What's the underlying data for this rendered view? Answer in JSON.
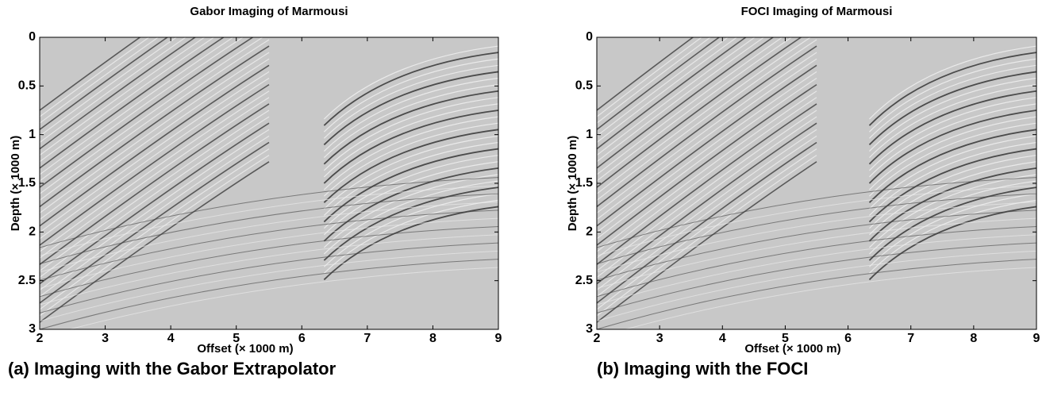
{
  "chart_data": [
    {
      "type": "image",
      "title": "Gabor Imaging of Marmousi",
      "x_label": "Offset (× 1000 m)",
      "y_label": "Depth (× 1000 m)",
      "caption": "(a) Imaging with the Gabor Extrapolator",
      "xlim": [
        2,
        9
      ],
      "ylim": [
        0,
        3
      ],
      "y_inverted": true,
      "xticks": [
        2,
        3,
        4,
        5,
        6,
        7,
        8,
        9
      ],
      "yticks": [
        0,
        0.5,
        1,
        1.5,
        2,
        2.5,
        3
      ],
      "colormap": "gray"
    },
    {
      "type": "image",
      "title": "FOCI Imaging of Marmousi",
      "x_label": "Offset (× 1000 m)",
      "y_label": "Depth (× 1000 m)",
      "caption": "(b) Imaging with the FOCI",
      "xlim": [
        2,
        9
      ],
      "ylim": [
        0,
        3
      ],
      "y_inverted": true,
      "xticks": [
        2,
        3,
        4,
        5,
        6,
        7,
        8,
        9
      ],
      "yticks": [
        0,
        0.5,
        1,
        1.5,
        2,
        2.5,
        3
      ],
      "colormap": "gray"
    }
  ]
}
